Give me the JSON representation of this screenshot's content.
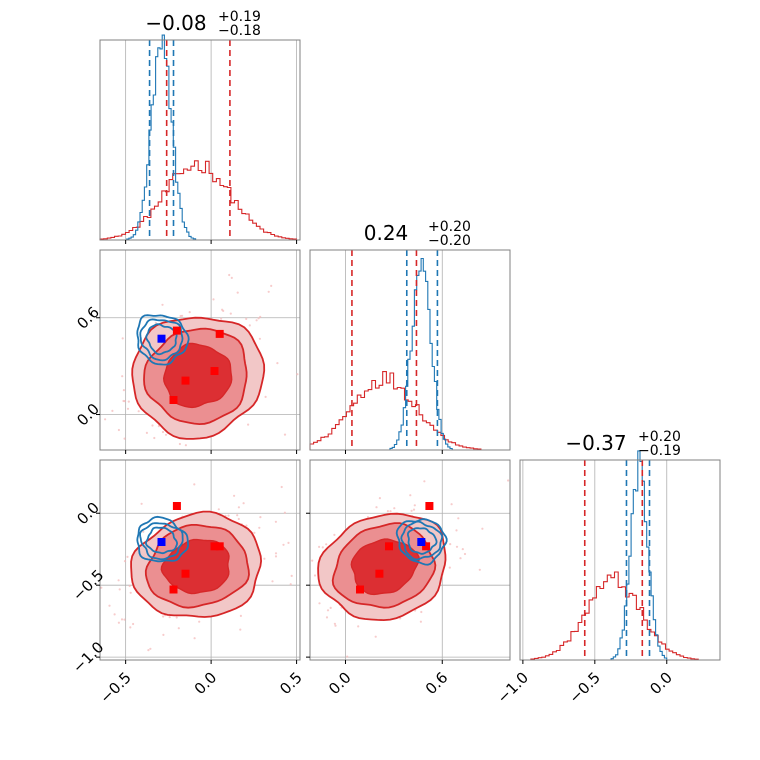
{
  "chart_data": {
    "type": "corner",
    "parameters": [
      {
        "title": {
          "center": "−0.08",
          "plus": "+0.19",
          "minus": "−0.18"
        },
        "range": [
          -0.65,
          0.52
        ]
      },
      {
        "title": {
          "center": "0.24",
          "plus": "+0.20",
          "minus": "−0.20"
        },
        "range": [
          -0.22,
          1.02
        ]
      },
      {
        "title": {
          "center": "−0.37",
          "plus": "+0.20",
          "minus": "−0.19"
        },
        "range": [
          -1.02,
          0.37
        ]
      }
    ],
    "grid": true,
    "x_ticks": [
      {
        "values": [
          -0.5,
          0.0,
          0.5
        ],
        "labels": [
          "−0.5",
          "0.0",
          "0.5"
        ]
      },
      {
        "values": [
          0.0,
          0.6
        ],
        "labels": [
          "0.0",
          "0.6"
        ]
      },
      {
        "values": [
          -1.0,
          -0.5,
          0.0
        ],
        "labels": [
          "−1.0",
          "−0.5",
          "0.0"
        ]
      }
    ],
    "y_ticks": [
      {
        "values": [
          0.0,
          0.6
        ],
        "labels": [
          "0.0",
          "0.6"
        ]
      },
      {
        "values": [
          -1.0,
          -0.5,
          0.0
        ],
        "labels": [
          "−1.0",
          "−0.5",
          "0.0"
        ]
      }
    ],
    "series": [
      {
        "color": "#d62728",
        "quantile_lines": [
          [
            -0.26,
            0.11
          ],
          [
            0.04,
            0.44
          ],
          [
            -0.57,
            -0.17
          ]
        ],
        "marginal": [
          {
            "center": -0.08,
            "sigma": 0.19,
            "amp": 0.38
          },
          {
            "center": 0.24,
            "sigma": 0.2,
            "amp": 0.36
          },
          {
            "center": -0.37,
            "sigma": 0.19,
            "amp": 0.4
          }
        ],
        "points": [
          [
            -0.2,
            0.52,
            0.05
          ],
          [
            -0.15,
            0.21,
            -0.42
          ],
          [
            0.05,
            0.5,
            -0.23
          ],
          [
            0.02,
            0.27,
            -0.23
          ],
          [
            -0.22,
            0.09,
            -0.53
          ]
        ]
      },
      {
        "color": "#1f77b4",
        "quantile_lines": [
          [
            -0.36,
            -0.22
          ],
          [
            0.38,
            0.57
          ],
          [
            -0.28,
            -0.12
          ]
        ],
        "marginal": [
          {
            "center": -0.29,
            "sigma": 0.06,
            "amp": 0.95
          },
          {
            "center": 0.47,
            "sigma": 0.06,
            "amp": 0.94
          },
          {
            "center": -0.19,
            "sigma": 0.06,
            "amp": 0.96
          }
        ],
        "points": [
          [
            -0.29,
            0.47,
            -0.2
          ]
        ]
      }
    ]
  }
}
